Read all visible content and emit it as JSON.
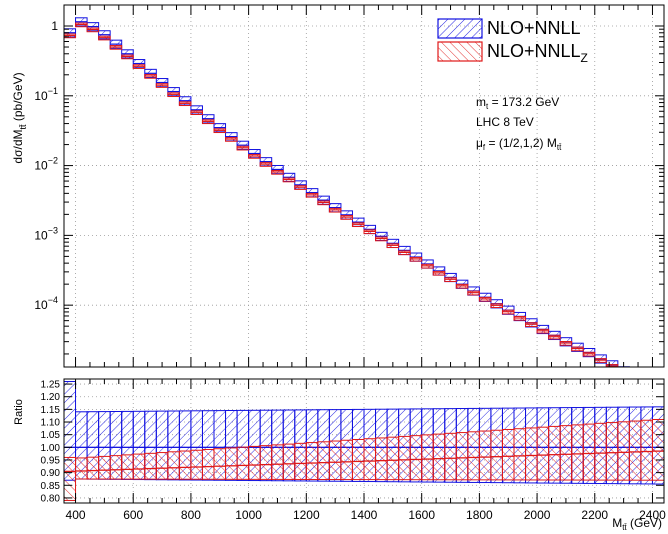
{
  "chart_data": [
    {
      "type": "step-band",
      "panel": "main",
      "ylabel": "dσ/dM",
      "ylabel_sub": "tt̄",
      "ylabel_unit": " (pb/GeV)",
      "yscale": "log",
      "ylim": [
        1.3e-05,
        2.0
      ],
      "xlim": [
        360,
        2440
      ],
      "grid": true,
      "y_ticks": [
        {
          "value": 1,
          "base": "1",
          "exp": ""
        },
        {
          "value": 0.1,
          "base": "10",
          "exp": "−1"
        },
        {
          "value": 0.01,
          "base": "10",
          "exp": "−2"
        },
        {
          "value": 0.001,
          "base": "10",
          "exp": "−3"
        },
        {
          "value": 0.0001,
          "base": "10",
          "exp": "−4"
        }
      ],
      "legend": [
        {
          "label": "NLO+NNLL",
          "sub": "",
          "color": "#1010e0",
          "hatch": "forward"
        },
        {
          "label": "NLO+NNLL",
          "sub": "Z",
          "color": "#e01818",
          "hatch": "backward"
        }
      ],
      "annotations": [
        {
          "text": "m",
          "sub": "t",
          "rest": " = 173.2 GeV"
        },
        {
          "text": "LHC 8 TeV",
          "sub": "",
          "rest": ""
        },
        {
          "text": "μ",
          "sub": "f",
          "rest": " = (1/2,1,2) M",
          "sub2": "tt̄"
        }
      ],
      "x_bin_edges": [
        360,
        400,
        440,
        480,
        520,
        560,
        600,
        640,
        680,
        720,
        760,
        800,
        840,
        880,
        920,
        960,
        1000,
        1040,
        1080,
        1120,
        1160,
        1200,
        1240,
        1280,
        1320,
        1360,
        1400,
        1440,
        1480,
        1520,
        1560,
        1600,
        1640,
        1680,
        1720,
        1760,
        1800,
        1840,
        1880,
        1920,
        1960,
        2000,
        2040,
        2080,
        2120,
        2160,
        2200,
        2240,
        2280,
        2320,
        2360,
        2400,
        2440
      ],
      "series": [
        {
          "name": "NLO+NNLL",
          "central": [
            0.8,
            1.15,
            0.98,
            0.75,
            0.55,
            0.4,
            0.29,
            0.21,
            0.155,
            0.115,
            0.085,
            0.063,
            0.047,
            0.035,
            0.026,
            0.0196,
            0.0149,
            0.0114,
            0.0088,
            0.0068,
            0.0053,
            0.0041,
            0.0032,
            0.0025,
            0.00197,
            0.00155,
            0.00122,
            0.00097,
            0.00077,
            0.00061,
            0.00049,
            0.00039,
            0.00031,
            0.00025,
            0.0002,
            0.00016,
            0.00013,
            0.000105,
            8.5e-05,
            6.9e-05,
            5.6e-05,
            4.5e-05,
            3.7e-05,
            3e-05,
            2.5e-05,
            2.1e-05,
            1.7e-05,
            1.4e-05,
            1.15e-05,
            9.5e-06,
            7.9e-06,
            6.6e-06
          ],
          "up_factor": 1.14,
          "down_factor": 0.87
        },
        {
          "name": "NLO+NNLL_Z",
          "central": [
            0.73,
            1.05,
            0.89,
            0.68,
            0.5,
            0.365,
            0.265,
            0.192,
            0.142,
            0.105,
            0.078,
            0.058,
            0.043,
            0.032,
            0.024,
            0.018,
            0.0137,
            0.0105,
            0.0081,
            0.0063,
            0.0049,
            0.0038,
            0.00296,
            0.00232,
            0.00183,
            0.00144,
            0.00114,
            0.0009,
            0.00072,
            0.00057,
            0.00046,
            0.000366,
            0.00029,
            0.000235,
            0.000189,
            0.000151,
            0.000123,
            9.95e-05,
            8.06e-05,
            6.55e-05,
            5.33e-05,
            4.29e-05,
            3.53e-05,
            2.87e-05,
            2.39e-05,
            2.01e-05,
            1.63e-05,
            1.34e-05,
            1.1e-05,
            9.1e-06,
            7.6e-06,
            6.4e-06
          ],
          "up_factor": 1.05,
          "down_factor": 0.93
        }
      ]
    },
    {
      "type": "step-band",
      "panel": "ratio",
      "ylabel": "Ratio",
      "ylim": [
        0.78,
        1.27
      ],
      "xlim": [
        360,
        2440
      ],
      "grid": true,
      "xlabel": "M",
      "xlabel_sub": "tt̄",
      "xlabel_unit": " (GeV)",
      "y_tick_labels": [
        "0.80",
        "0.85",
        "0.90",
        "0.95",
        "1.00",
        "1.05",
        "1.10",
        "1.15",
        "1.20",
        "1.25"
      ],
      "x_tick_labels": [
        "400",
        "600",
        "800",
        "1000",
        "1200",
        "1400",
        "1600",
        "1800",
        "2000",
        "2200",
        "2400"
      ],
      "series": [
        {
          "name": "NLO+NNLL",
          "central": 1.0,
          "band_up_start": 1.14,
          "band_up_end": 1.16,
          "band_down_start": 0.875,
          "band_down_end": 0.855,
          "first_bin_up": 1.26,
          "first_bin_down": 0.87
        },
        {
          "name": "NLO+NNLL_Z",
          "central_start": 0.905,
          "central_end": 0.985,
          "band_up_start": 0.955,
          "band_up_end": 1.11,
          "band_down_start": 0.875,
          "band_down_end": 0.87,
          "first_bin_up": 0.96,
          "first_bin_down": 0.79
        }
      ]
    }
  ],
  "colors": {
    "nnll": "#1010e0",
    "nnllz": "#e01818",
    "grid": "#999999"
  }
}
